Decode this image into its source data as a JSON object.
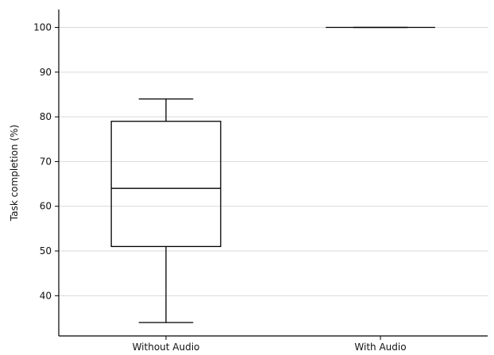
{
  "chart_data": {
    "type": "box",
    "title": "",
    "xlabel": "",
    "ylabel": "Task completion (%)",
    "ylim": [
      31,
      104
    ],
    "yticks": [
      40,
      50,
      60,
      70,
      80,
      90,
      100
    ],
    "grid": "y",
    "categories": [
      "Without Audio",
      "With Audio"
    ],
    "series": [
      {
        "category": "Without Audio",
        "whisker_low": 34,
        "q1": 51,
        "median": 64,
        "q3": 79,
        "whisker_high": 84
      },
      {
        "category": "With Audio",
        "whisker_low": 100,
        "q1": 100,
        "median": 100,
        "q3": 100,
        "whisker_high": 100
      }
    ],
    "colors": {
      "box_stroke": "#000000",
      "grid": "#d9d9d9",
      "text": "#111111"
    }
  }
}
